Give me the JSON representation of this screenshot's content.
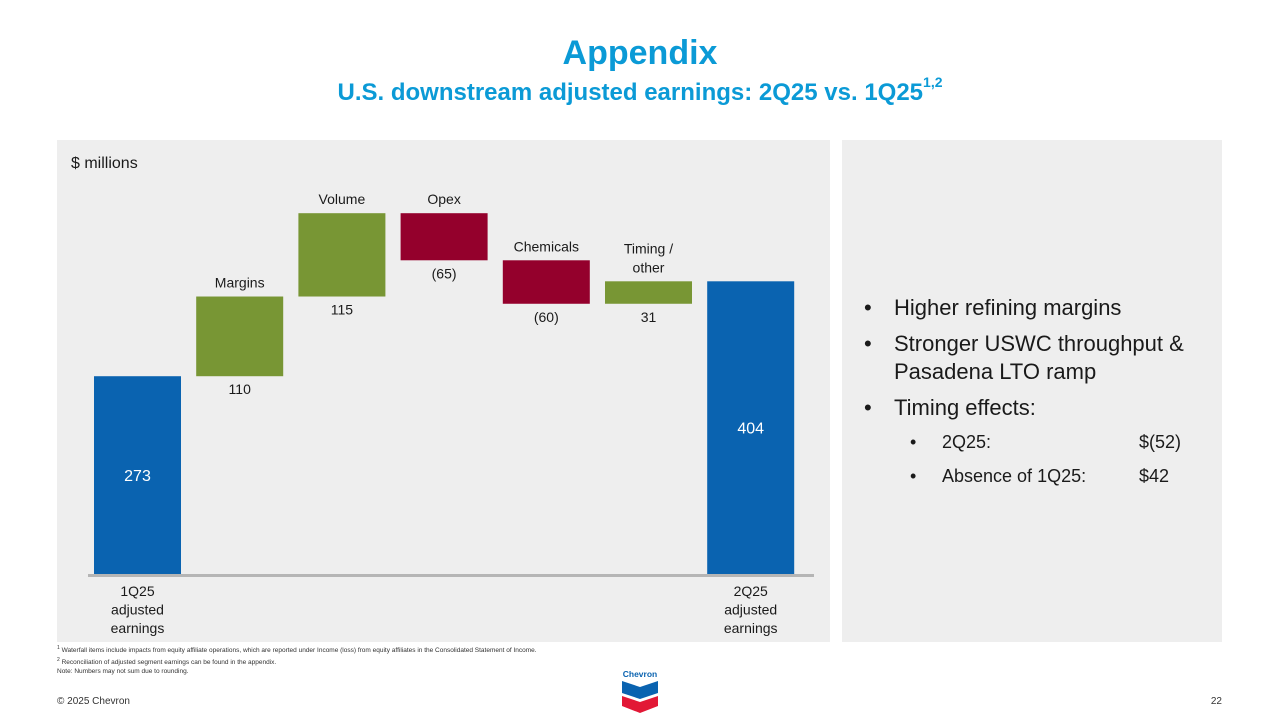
{
  "header": {
    "title": "Appendix",
    "subtitle": "U.S. downstream adjusted earnings: 2Q25 vs. 1Q25",
    "subtitle_superscript": "1,2"
  },
  "chart_data": {
    "type": "waterfall",
    "unit_label": "$ millions",
    "steps": [
      {
        "label": "1Q25 adjusted earnings",
        "value_label": "273",
        "start": 0,
        "end": 273,
        "kind": "total"
      },
      {
        "label": "Margins",
        "value_label": "110",
        "start": 273,
        "end": 383,
        "kind": "increase"
      },
      {
        "label": "Volume",
        "value_label": "115",
        "start": 383,
        "end": 498,
        "kind": "increase"
      },
      {
        "label": "Opex",
        "value_label": "(65)",
        "start": 498,
        "end": 433,
        "kind": "decrease"
      },
      {
        "label": "Chemicals",
        "value_label": "(60)",
        "start": 433,
        "end": 373,
        "kind": "decrease"
      },
      {
        "label": "Timing / other",
        "value_label": "31",
        "start": 373,
        "end": 404,
        "kind": "increase"
      },
      {
        "label": "2Q25 adjusted earnings",
        "value_label": "404",
        "start": 0,
        "end": 404,
        "kind": "total"
      }
    ],
    "colors": {
      "total": "#0a63b0",
      "increase": "#789634",
      "decrease": "#94002c"
    }
  },
  "side": {
    "bullets": [
      "Higher refining margins",
      "Stronger USWC throughput & Pasadena LTO ramp",
      "Timing effects:"
    ],
    "sub_bullets": [
      {
        "label": "2Q25:",
        "value": "$(52)"
      },
      {
        "label": "Absence of 1Q25:",
        "value": "$42"
      }
    ]
  },
  "footnotes": [
    {
      "marker": "1",
      "text": "Waterfall items include impacts from equity affiliate operations, which are reported under Income (loss) from equity affiliates in the Consolidated Statement of Income."
    },
    {
      "marker": "2",
      "text": "Reconciliation of adjusted segment earnings can be found in the appendix."
    },
    {
      "marker": "",
      "text": "Note: Numbers may not sum due to rounding."
    }
  ],
  "footer": {
    "copyright": "© 2025 Chevron",
    "page": "22",
    "logo_text": "Chevron"
  }
}
